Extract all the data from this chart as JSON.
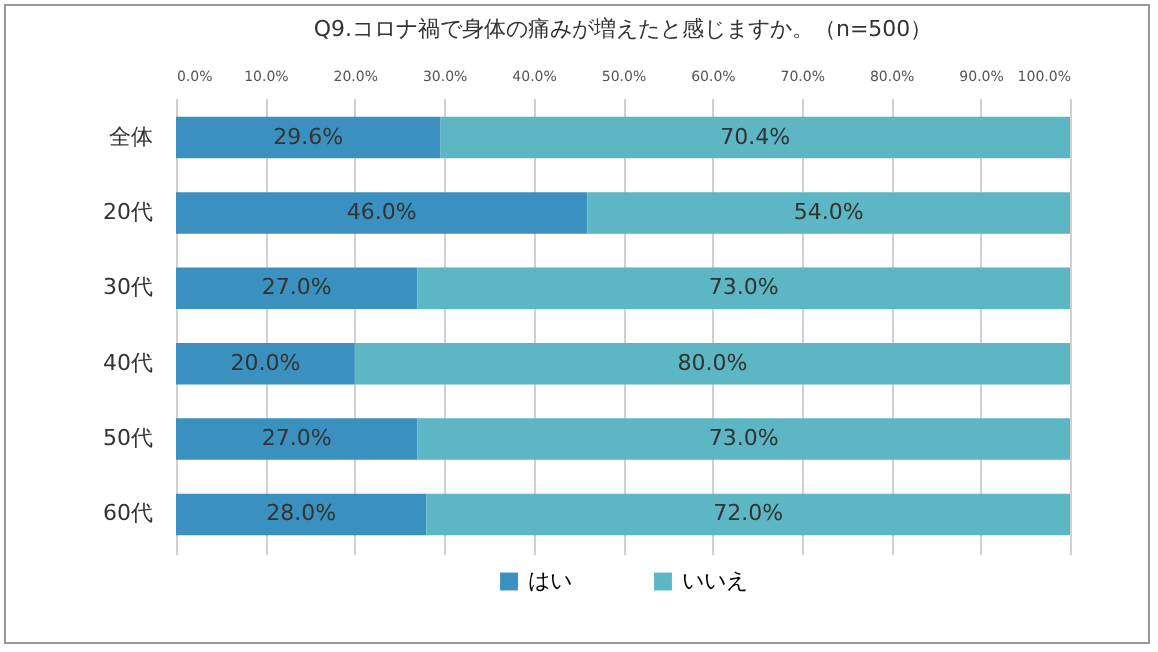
{
  "chart_data": {
    "type": "bar",
    "orientation": "horizontal",
    "stacked": true,
    "title": "Q9.コロナ禍で身体の痛みが増えたと感じますか。（n=500）",
    "categories": [
      "全体",
      "20代",
      "30代",
      "40代",
      "50代",
      "60代"
    ],
    "series": [
      {
        "name": "はい",
        "color": "#3a91bf",
        "values": [
          29.6,
          46.0,
          27.0,
          20.0,
          27.0,
          28.0
        ],
        "value_labels": [
          "29.6%",
          "46.0%",
          "27.0%",
          "20.0%",
          "27.0%",
          "28.0%"
        ]
      },
      {
        "name": "いいえ",
        "color": "#5cb6c3",
        "values": [
          70.4,
          54.0,
          73.0,
          80.0,
          73.0,
          72.0
        ],
        "value_labels": [
          "70.4%",
          "54.0%",
          "73.0%",
          "80.0%",
          "73.0%",
          "72.0%"
        ]
      }
    ],
    "xlim": [
      0,
      100
    ],
    "xticks": [
      {
        "value": 0,
        "label": "0.0%"
      },
      {
        "value": 10,
        "label": "10.0%"
      },
      {
        "value": 20,
        "label": "20.0%"
      },
      {
        "value": 30,
        "label": "30.0%"
      },
      {
        "value": 40,
        "label": "40.0%"
      },
      {
        "value": 50,
        "label": "50.0%"
      },
      {
        "value": 60,
        "label": "60.0%"
      },
      {
        "value": 70,
        "label": "70.0%"
      },
      {
        "value": 80,
        "label": "80.0%"
      },
      {
        "value": 90,
        "label": "90.0%"
      },
      {
        "value": 100,
        "label": "100.0%"
      }
    ],
    "grid": true,
    "legend": "bottom"
  }
}
